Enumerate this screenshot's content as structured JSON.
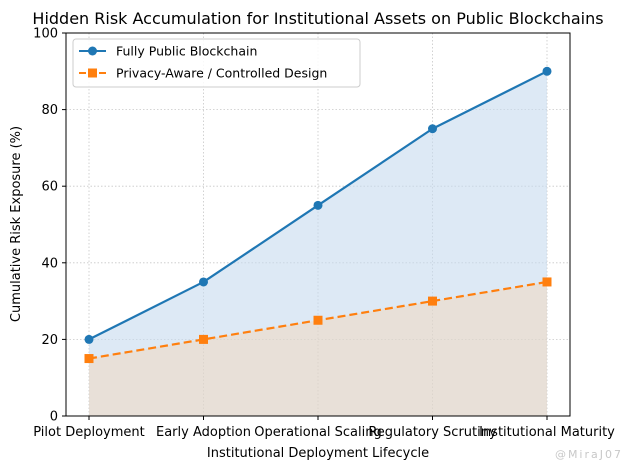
{
  "chart_data": {
    "type": "line",
    "title": "Hidden Risk Accumulation for Institutional Assets on Public Blockchains",
    "xlabel": "Institutional Deployment Lifecycle",
    "ylabel": "Cumulative Risk Exposure (%)",
    "categories": [
      "Pilot Deployment",
      "Early Adoption",
      "Operational Scaling",
      "Regulatory Scrutiny",
      "Institutional Maturity"
    ],
    "ylim": [
      0,
      100
    ],
    "yticks": [
      0,
      20,
      40,
      60,
      80,
      100
    ],
    "grid": true,
    "legend_position": "upper-left",
    "series": [
      {
        "name": "Fully Public Blockchain",
        "values": [
          20,
          35,
          55,
          75,
          90
        ],
        "color": "#1f77b4",
        "fill_color": "#c6dbef",
        "line_style": "solid",
        "marker": "circle"
      },
      {
        "name": "Privacy-Aware / Controlled Design",
        "values": [
          15,
          20,
          25,
          30,
          35
        ],
        "color": "#ff7f0e",
        "fill_color": "#fdd0a2",
        "line_style": "dashed",
        "marker": "square"
      }
    ]
  },
  "watermark": "@MiraJ07"
}
